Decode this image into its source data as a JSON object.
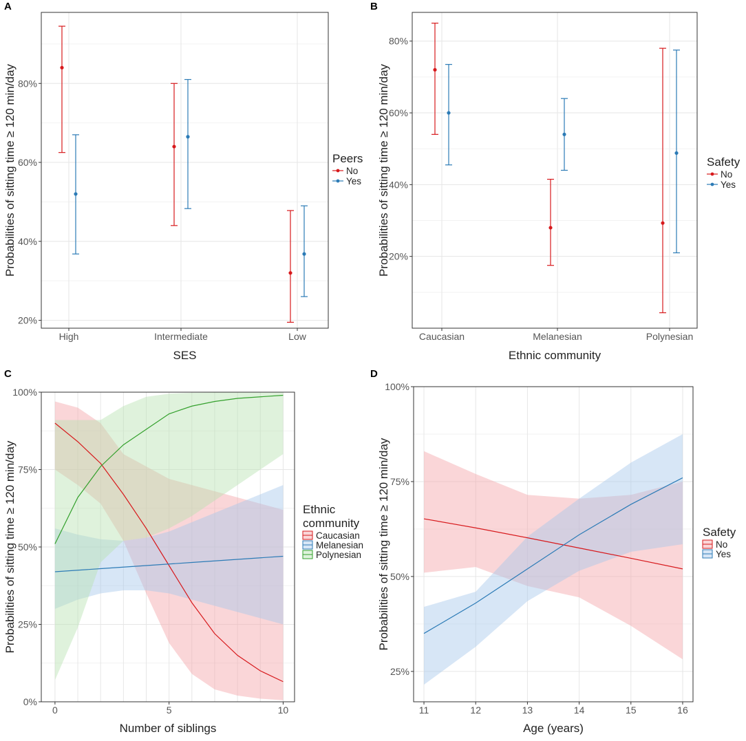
{
  "chart_data": [
    {
      "panel": "A",
      "type": "errorbar",
      "xlabel": "SES",
      "ylabel": "Probabilities of sitting time ≥ 120 min/day",
      "categories": [
        "High",
        "Intermediate",
        "Low"
      ],
      "yticks": [
        "20%",
        "40%",
        "60%",
        "80%"
      ],
      "ylim": [
        0.18,
        0.98
      ],
      "legend": {
        "title": "Peers",
        "entries": [
          "No",
          "Yes"
        ]
      },
      "series": [
        {
          "name": "No",
          "color": "#d7191c",
          "points": [
            {
              "x": "High",
              "y": 0.84,
              "lo": 0.625,
              "hi": 0.945
            },
            {
              "x": "Intermediate",
              "y": 0.64,
              "lo": 0.44,
              "hi": 0.8
            },
            {
              "x": "Low",
              "y": 0.32,
              "lo": 0.195,
              "hi": 0.478
            }
          ]
        },
        {
          "name": "Yes",
          "color": "#2c7bb6",
          "points": [
            {
              "x": "High",
              "y": 0.52,
              "lo": 0.368,
              "hi": 0.67
            },
            {
              "x": "Intermediate",
              "y": 0.665,
              "lo": 0.483,
              "hi": 0.81
            },
            {
              "x": "Low",
              "y": 0.368,
              "lo": 0.26,
              "hi": 0.49
            }
          ]
        }
      ]
    },
    {
      "panel": "B",
      "type": "errorbar",
      "xlabel": "Ethnic community",
      "ylabel": "Probabilities of sitting time ≥ 120 min/day",
      "categories": [
        "Caucasian",
        "Melanesian",
        "Polynesian"
      ],
      "yticks": [
        "20%",
        "40%",
        "60%",
        "80%"
      ],
      "ylim": [
        0.0,
        0.88
      ],
      "legend": {
        "title": "Safety",
        "entries": [
          "No",
          "Yes"
        ]
      },
      "series": [
        {
          "name": "No",
          "color": "#d7191c",
          "points": [
            {
              "x": "Caucasian",
              "y": 0.72,
              "lo": 0.54,
              "hi": 0.85
            },
            {
              "x": "Melanesian",
              "y": 0.28,
              "lo": 0.175,
              "hi": 0.415
            },
            {
              "x": "Polynesian",
              "y": 0.293,
              "lo": 0.043,
              "hi": 0.78
            }
          ]
        },
        {
          "name": "Yes",
          "color": "#2c7bb6",
          "points": [
            {
              "x": "Caucasian",
              "y": 0.6,
              "lo": 0.455,
              "hi": 0.735
            },
            {
              "x": "Melanesian",
              "y": 0.54,
              "lo": 0.44,
              "hi": 0.64
            },
            {
              "x": "Polynesian",
              "y": 0.488,
              "lo": 0.21,
              "hi": 0.775
            }
          ]
        }
      ]
    },
    {
      "panel": "C",
      "type": "line",
      "xlabel": "Number of siblings",
      "ylabel": "Probabilities of sitting time ≥ 120 min/day",
      "xlim": [
        0,
        10
      ],
      "ylim": [
        0,
        1
      ],
      "xticks": [
        "0",
        "5",
        "10"
      ],
      "yticks": [
        "0%",
        "25%",
        "50%",
        "75%",
        "100%"
      ],
      "legend": {
        "title_line1": "Ethnic",
        "title_line2": "community",
        "entries": [
          "Caucasian",
          "Melanesian",
          "Polynesian"
        ]
      },
      "series": [
        {
          "name": "Caucasian",
          "color": "#d7191c",
          "fill": "#f4a3a8",
          "x": [
            0,
            1,
            2,
            3,
            4,
            5,
            6,
            7,
            8,
            9,
            10
          ],
          "y": [
            0.9,
            0.84,
            0.77,
            0.67,
            0.56,
            0.44,
            0.32,
            0.22,
            0.15,
            0.1,
            0.065
          ],
          "lo": [
            0.75,
            0.7,
            0.64,
            0.52,
            0.35,
            0.19,
            0.09,
            0.04,
            0.02,
            0.01,
            0.005
          ],
          "hi": [
            0.97,
            0.95,
            0.9,
            0.8,
            0.76,
            0.72,
            0.7,
            0.68,
            0.66,
            0.64,
            0.62
          ]
        },
        {
          "name": "Melanesian",
          "color": "#2c7bb6",
          "fill": "#a6c8ea",
          "x": [
            0,
            1,
            2,
            3,
            4,
            5,
            6,
            7,
            8,
            9,
            10
          ],
          "y": [
            0.42,
            0.425,
            0.43,
            0.435,
            0.44,
            0.445,
            0.45,
            0.455,
            0.46,
            0.465,
            0.47
          ],
          "lo": [
            0.3,
            0.33,
            0.35,
            0.36,
            0.36,
            0.35,
            0.33,
            0.31,
            0.29,
            0.27,
            0.25
          ],
          "hi": [
            0.56,
            0.54,
            0.525,
            0.52,
            0.53,
            0.55,
            0.58,
            0.61,
            0.64,
            0.67,
            0.7
          ]
        },
        {
          "name": "Polynesian",
          "color": "#33a02c",
          "fill": "#b7e2b1",
          "x": [
            0,
            1,
            2,
            3,
            4,
            5,
            6,
            7,
            8,
            9,
            10
          ],
          "y": [
            0.51,
            0.66,
            0.76,
            0.83,
            0.88,
            0.93,
            0.955,
            0.97,
            0.98,
            0.985,
            0.99
          ],
          "lo": [
            0.07,
            0.24,
            0.45,
            0.52,
            0.53,
            0.56,
            0.6,
            0.65,
            0.7,
            0.75,
            0.8
          ],
          "hi": [
            0.91,
            0.91,
            0.91,
            0.955,
            0.985,
            0.995,
            0.998,
            0.999,
            0.999,
            0.999,
            0.999
          ]
        }
      ]
    },
    {
      "panel": "D",
      "type": "line",
      "xlabel": "Age (years)",
      "ylabel": "Probabilities of sitting time ≥ 120 min/day",
      "xlim": [
        10.8,
        16.2
      ],
      "ylim": [
        0.17,
        1.0
      ],
      "xticks": [
        "11",
        "12",
        "13",
        "14",
        "15",
        "16"
      ],
      "yticks": [
        "25%",
        "50%",
        "75%",
        "100%"
      ],
      "legend": {
        "title": "Safety",
        "entries": [
          "No",
          "Yes"
        ]
      },
      "series": [
        {
          "name": "No",
          "color": "#d7191c",
          "fill": "#f4a3a8",
          "x": [
            11,
            12,
            13,
            14,
            15,
            16
          ],
          "y": [
            0.652,
            0.628,
            0.602,
            0.575,
            0.548,
            0.52
          ],
          "lo": [
            0.51,
            0.525,
            0.475,
            0.445,
            0.37,
            0.282
          ],
          "hi": [
            0.83,
            0.77,
            0.715,
            0.705,
            0.715,
            0.75
          ]
        },
        {
          "name": "Yes",
          "color": "#2c7bb6",
          "fill": "#a6c8ea",
          "x": [
            11,
            12,
            13,
            14,
            15,
            16
          ],
          "y": [
            0.35,
            0.43,
            0.52,
            0.61,
            0.69,
            0.76
          ],
          "lo": [
            0.215,
            0.315,
            0.435,
            0.515,
            0.565,
            0.585
          ],
          "hi": [
            0.42,
            0.46,
            0.605,
            0.705,
            0.8,
            0.875
          ]
        }
      ]
    }
  ]
}
